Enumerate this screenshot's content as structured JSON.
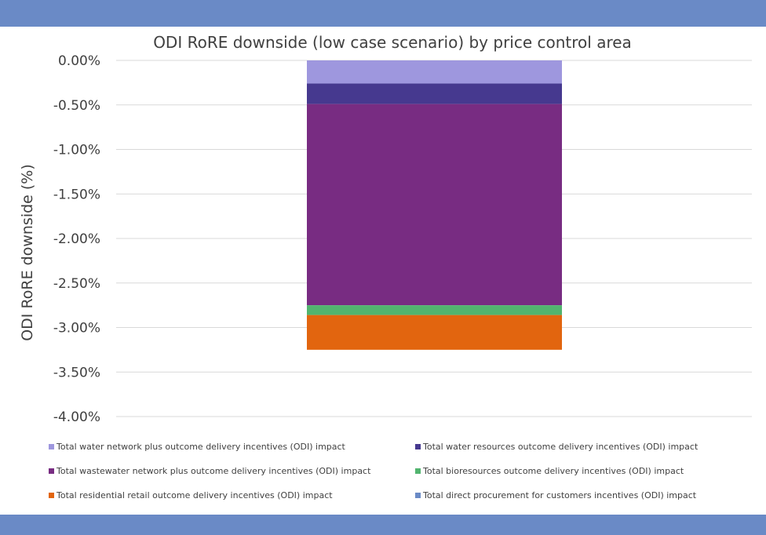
{
  "chart_data": {
    "type": "bar",
    "stacked": true,
    "title": "ODI RoRE downside (low case scenario) by price control area",
    "xlabel": "",
    "ylabel": "ODI RoRE downside (%)",
    "ylim": [
      -4.0,
      0.0
    ],
    "yticks": [
      "0.00%",
      "-0.50%",
      "-1.00%",
      "-1.50%",
      "-2.00%",
      "-2.50%",
      "-3.00%",
      "-3.50%",
      "-4.00%"
    ],
    "categories": [
      ""
    ],
    "grid": true,
    "legend_position": "bottom",
    "series": [
      {
        "name": "Total water network plus outcome delivery incentives (ODI) impact",
        "color": "#9e97de",
        "values": [
          -0.26
        ]
      },
      {
        "name": "Total water resources outcome delivery incentives (ODI) impact",
        "color": "#46398f",
        "values": [
          -0.23
        ]
      },
      {
        "name": "Total wastewater network plus outcome delivery incentives (ODI) impact",
        "color": "#782c82",
        "values": [
          -2.26
        ]
      },
      {
        "name": "Total bioresources outcome delivery incentives (ODI) impact",
        "color": "#52b46f",
        "values": [
          -0.11
        ]
      },
      {
        "name": "Total residential retail outcome delivery incentives (ODI) impact",
        "color": "#e2650f",
        "values": [
          -0.39
        ]
      },
      {
        "name": "Total direct procurement for customers incentives (ODI) impact",
        "color": "#6a8ac6",
        "values": [
          0.0
        ]
      }
    ]
  }
}
